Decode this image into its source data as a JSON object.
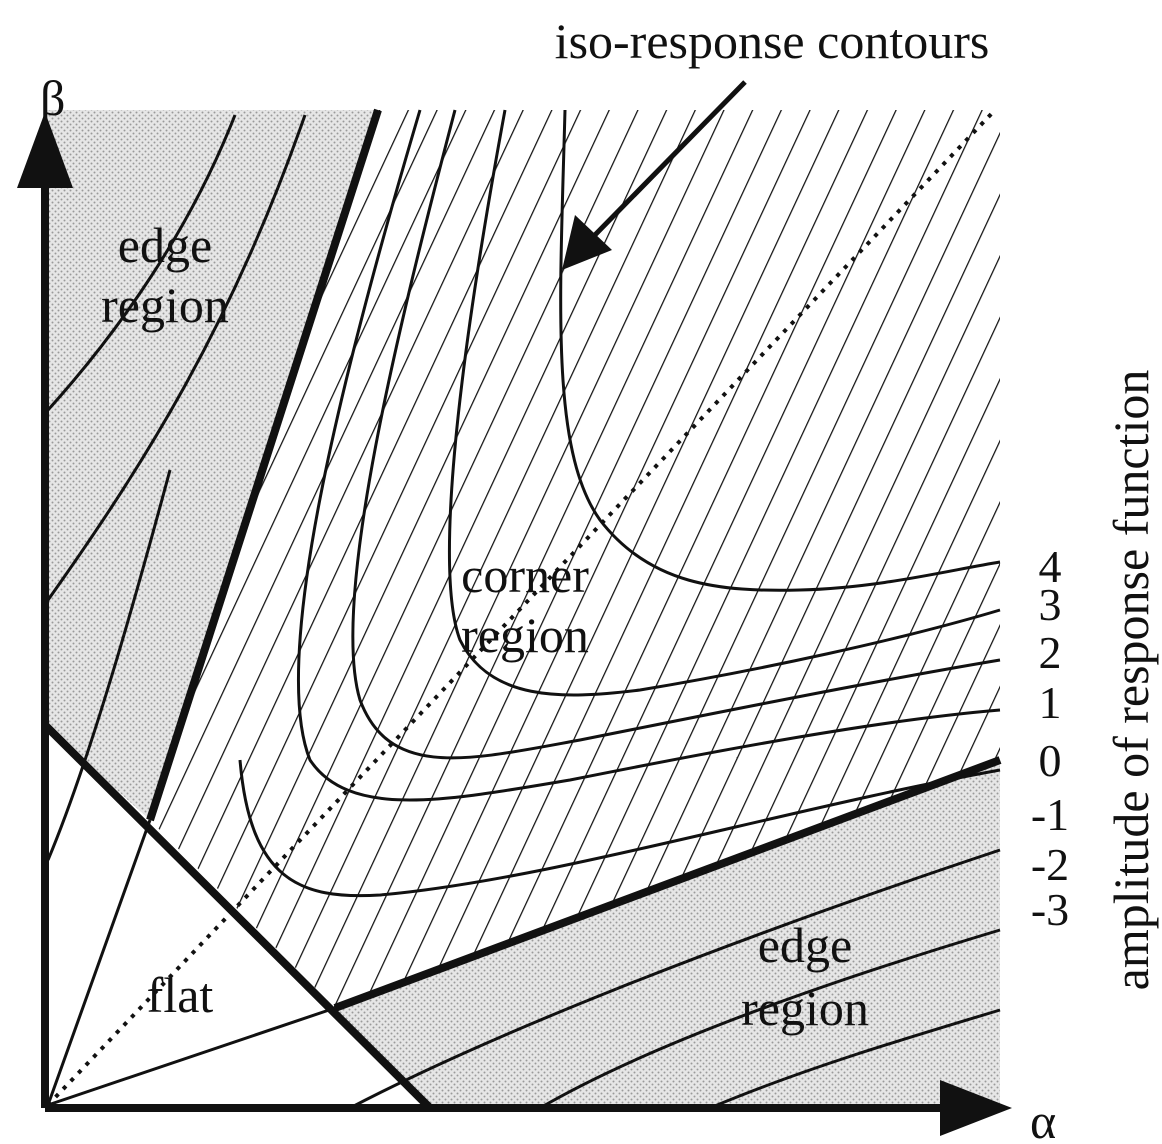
{
  "title": "iso-response contours",
  "axes": {
    "x": "α",
    "y": "β",
    "right": "amplitude of response function"
  },
  "regions": {
    "edge_top": [
      "edge",
      "region"
    ],
    "corner": [
      "corner",
      "region"
    ],
    "flat": "flat",
    "edge_bottom": [
      "edge",
      "region"
    ]
  },
  "contour_labels": [
    "4",
    "3",
    "2",
    "1",
    "0",
    "-1",
    "-2",
    "-3"
  ]
}
